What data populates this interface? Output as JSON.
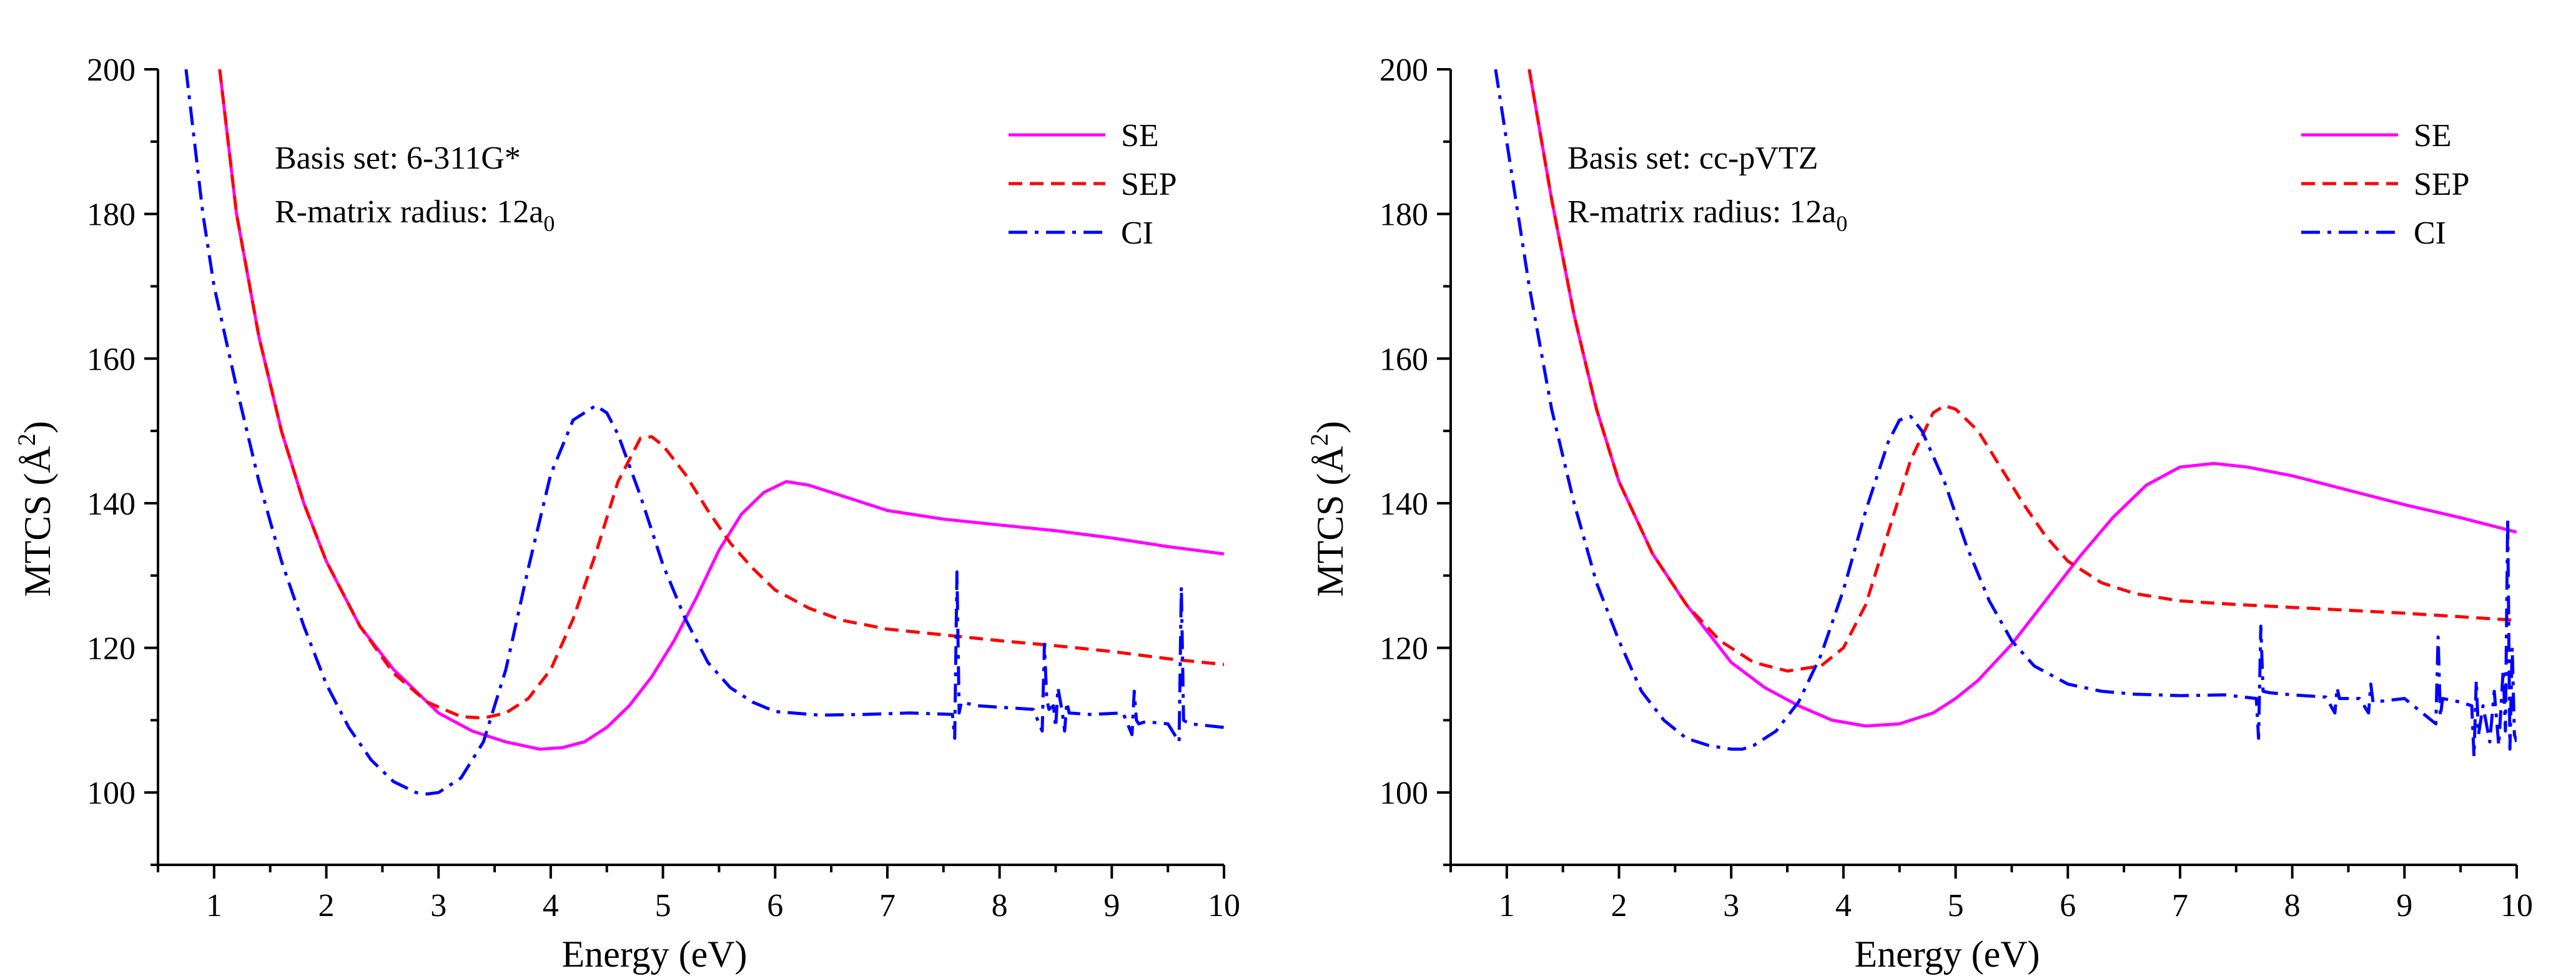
{
  "chart_data": [
    {
      "type": "line",
      "xlabel": "Energy (eV)",
      "ylabel_main": "MTCS (Å",
      "ylabel_sup": "2",
      "ylabel_close": ")",
      "xlim": [
        0.5,
        10
      ],
      "ylim": [
        90,
        200
      ],
      "xticks": [
        1,
        2,
        3,
        4,
        5,
        6,
        7,
        8,
        9,
        10
      ],
      "yticks": [
        100,
        120,
        140,
        160,
        180,
        200
      ],
      "annotation_line1": "Basis set: 6-311G*",
      "annotation_line2_main": "R-matrix radius: 12a",
      "annotation_line2_sub": "0",
      "legend_position": "top-right",
      "series": [
        {
          "name": "SE",
          "color": "#ff00ff",
          "dash": "solid",
          "x": [
            1.05,
            1.2,
            1.4,
            1.6,
            1.8,
            2.0,
            2.3,
            2.6,
            3.0,
            3.3,
            3.6,
            3.9,
            4.1,
            4.3,
            4.5,
            4.7,
            4.9,
            5.1,
            5.3,
            5.5,
            5.7,
            5.9,
            6.1,
            6.3,
            6.6,
            7.0,
            7.5,
            8.0,
            8.5,
            9.0,
            9.5,
            10.0
          ],
          "y": [
            200,
            180,
            163,
            150,
            140,
            132,
            123,
            117,
            111,
            108.5,
            107,
            106,
            106.2,
            107,
            109,
            112,
            116,
            121,
            127,
            133.5,
            138.5,
            141.5,
            143,
            142.5,
            141,
            139,
            137.8,
            137,
            136.2,
            135.2,
            134,
            133
          ]
        },
        {
          "name": "SEP",
          "color": "#ff0000",
          "dash": "dashed",
          "x": [
            1.05,
            1.2,
            1.4,
            1.6,
            1.8,
            2.0,
            2.3,
            2.6,
            2.9,
            3.2,
            3.4,
            3.6,
            3.8,
            4.0,
            4.2,
            4.4,
            4.6,
            4.8,
            4.9,
            5.0,
            5.2,
            5.4,
            5.6,
            5.8,
            6.0,
            6.3,
            6.6,
            7.0,
            7.5,
            8.0,
            8.5,
            9.0,
            9.5,
            10.0
          ],
          "y": [
            200,
            180,
            163,
            150,
            140,
            132,
            123,
            116.5,
            112.5,
            110.5,
            110.3,
            111,
            113,
            117,
            124,
            133,
            143,
            149,
            149.2,
            148,
            144,
            139,
            134.5,
            131,
            128,
            125.5,
            123.8,
            122.6,
            121.8,
            121,
            120.3,
            119.5,
            118.5,
            117.7
          ]
        },
        {
          "name": "CI",
          "color": "#0000ff",
          "dash": "dashdot",
          "x": [
            0.75,
            0.9,
            1.0,
            1.2,
            1.4,
            1.6,
            1.8,
            2.0,
            2.2,
            2.4,
            2.6,
            2.8,
            2.9,
            3.0,
            3.2,
            3.4,
            3.6,
            3.8,
            4.0,
            4.2,
            4.4,
            4.5,
            4.6,
            4.8,
            5.0,
            5.2,
            5.4,
            5.6,
            5.8,
            6.0,
            6.4,
            6.8,
            7.2,
            7.58,
            7.6,
            7.62,
            7.64,
            7.66,
            7.8,
            8.0,
            8.3,
            8.38,
            8.4,
            8.42,
            8.44,
            8.48,
            8.5,
            8.52,
            8.56,
            8.58,
            8.6,
            8.62,
            8.8,
            9.1,
            9.18,
            9.2,
            9.22,
            9.24,
            9.3,
            9.5,
            9.6,
            9.62,
            9.64,
            9.66,
            9.7,
            10.0
          ],
          "y": [
            200,
            180,
            170,
            156,
            143,
            132,
            123,
            115,
            109,
            104.5,
            101.5,
            100,
            99.8,
            100,
            102,
            107,
            117,
            131,
            144,
            151.5,
            153.5,
            152.5,
            149.5,
            141,
            131.5,
            124,
            118,
            114.5,
            112.5,
            111.2,
            110.7,
            110.8,
            111,
            110.8,
            107.5,
            130.5,
            111,
            112.5,
            112,
            111.8,
            111.5,
            108.5,
            120.5,
            113,
            111.5,
            112,
            109,
            114.5,
            111,
            108.5,
            112.5,
            111,
            110.8,
            111,
            108,
            114,
            110,
            109.5,
            109.8,
            109.5,
            107,
            128.5,
            110,
            109.8,
            109.5,
            109
          ]
        }
      ]
    },
    {
      "type": "line",
      "xlabel": "Energy (eV)",
      "ylabel_main": "MTCS (Å",
      "ylabel_sup": "2",
      "ylabel_close": ")",
      "xlim": [
        0.5,
        10
      ],
      "ylim": [
        90,
        200
      ],
      "xticks": [
        1,
        2,
        3,
        4,
        5,
        6,
        7,
        8,
        9,
        10
      ],
      "yticks": [
        100,
        120,
        140,
        160,
        180,
        200
      ],
      "annotation_line1": "Basis set: cc-pVTZ",
      "annotation_line2_main": "R-matrix radius: 12a",
      "annotation_line2_sub": "0",
      "legend_position": "top-right",
      "series": [
        {
          "name": "SE",
          "color": "#ff00ff",
          "dash": "solid",
          "x": [
            1.2,
            1.4,
            1.6,
            1.8,
            2.0,
            2.3,
            2.6,
            3.0,
            3.3,
            3.6,
            3.9,
            4.2,
            4.5,
            4.8,
            5.0,
            5.2,
            5.5,
            5.8,
            6.1,
            6.4,
            6.7,
            7.0,
            7.3,
            7.6,
            8.0,
            8.5,
            9.0,
            9.5,
            10.0
          ],
          "y": [
            200,
            182,
            166,
            153,
            143,
            133,
            126,
            118,
            114.5,
            112,
            110,
            109.2,
            109.5,
            111,
            113,
            115.5,
            120.5,
            126.5,
            132.5,
            138,
            142.5,
            145,
            145.5,
            145,
            143.8,
            141.8,
            139.8,
            138,
            136
          ]
        },
        {
          "name": "SEP",
          "color": "#ff0000",
          "dash": "dashed",
          "x": [
            1.2,
            1.4,
            1.6,
            1.8,
            2.0,
            2.3,
            2.6,
            2.9,
            3.2,
            3.5,
            3.8,
            4.0,
            4.2,
            4.4,
            4.6,
            4.8,
            4.9,
            5.0,
            5.2,
            5.4,
            5.6,
            5.8,
            6.0,
            6.3,
            6.6,
            7.0,
            7.5,
            8.0,
            8.5,
            9.0,
            9.5,
            10.0
          ],
          "y": [
            200,
            182,
            166,
            153,
            143,
            133,
            126,
            121,
            118,
            116.8,
            117.5,
            120,
            126,
            136,
            146,
            152.5,
            153.5,
            153,
            150,
            145,
            140,
            135.5,
            132,
            129,
            127.5,
            126.5,
            126,
            125.6,
            125.2,
            124.8,
            124.3,
            123.8
          ]
        },
        {
          "name": "CI",
          "color": "#0000ff",
          "dash": "dashdot",
          "x": [
            0.9,
            1.0,
            1.2,
            1.4,
            1.6,
            1.8,
            2.0,
            2.2,
            2.4,
            2.6,
            2.8,
            3.0,
            3.1,
            3.2,
            3.4,
            3.6,
            3.8,
            4.0,
            4.2,
            4.4,
            4.5,
            4.6,
            4.7,
            4.9,
            5.1,
            5.3,
            5.5,
            5.7,
            6.0,
            6.3,
            6.6,
            7.0,
            7.4,
            7.68,
            7.7,
            7.72,
            7.74,
            7.8,
            8.0,
            8.3,
            8.38,
            8.4,
            8.42,
            8.6,
            8.68,
            8.7,
            8.72,
            9.0,
            9.28,
            9.3,
            9.32,
            9.34,
            9.5,
            9.6,
            9.62,
            9.64,
            9.66,
            9.7,
            9.76,
            9.8,
            9.84,
            9.88,
            9.9,
            9.92,
            9.94,
            9.96,
            9.98,
            10.0
          ],
          "y": [
            200,
            190,
            170,
            153,
            140,
            129,
            121,
            114,
            110,
            107.5,
            106.5,
            106,
            106,
            106.5,
            108.5,
            112.5,
            119,
            128,
            139,
            148.5,
            151.5,
            152,
            150,
            143,
            134,
            126.5,
            121,
            117.5,
            115,
            114,
            113.6,
            113.4,
            113.5,
            113,
            107.5,
            123,
            114,
            113.8,
            113.5,
            113.2,
            111,
            114.5,
            113,
            113,
            111,
            115,
            112.5,
            113,
            109.5,
            121.5,
            110.5,
            113,
            112.5,
            112,
            105,
            115.5,
            108,
            112,
            107,
            114,
            106.5,
            117,
            108.5,
            138,
            106,
            120,
            108,
            107
          ]
        }
      ]
    }
  ]
}
